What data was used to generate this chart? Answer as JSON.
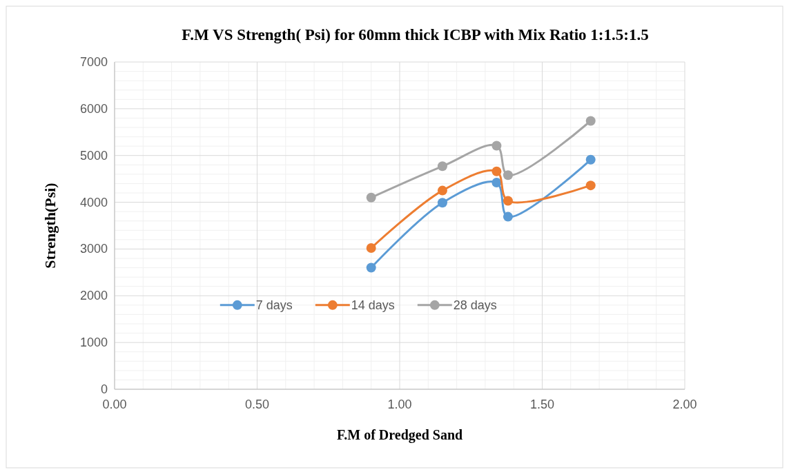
{
  "chart_data": {
    "type": "line",
    "title": "F.M VS Strength( Psi)  for 60mm thick ICBP with Mix Ratio 1:1.5:1.5",
    "xlabel": "F.M of Dredged Sand",
    "ylabel": "Strength(Psi)",
    "x": [
      0.9,
      1.15,
      1.34,
      1.38,
      1.67
    ],
    "series": [
      {
        "name": "7 days",
        "color": "#5b9bd5",
        "values": [
          2600,
          3990,
          4420,
          3690,
          4910
        ]
      },
      {
        "name": "14 days",
        "color": "#ed7d31",
        "values": [
          3020,
          4250,
          4660,
          4030,
          4360
        ]
      },
      {
        "name": "28 days",
        "color": "#a5a5a5",
        "values": [
          4100,
          4770,
          5210,
          4580,
          5740
        ]
      }
    ],
    "xlim": [
      0,
      2
    ],
    "xticks": [
      {
        "value": 0,
        "label": "0.00"
      },
      {
        "value": 0.5,
        "label": "0.50"
      },
      {
        "value": 1,
        "label": "1.00"
      },
      {
        "value": 1.5,
        "label": "1.50"
      },
      {
        "value": 2,
        "label": "2.00"
      }
    ],
    "ylim": [
      0,
      7000
    ],
    "yticks": [
      0,
      1000,
      2000,
      3000,
      4000,
      5000,
      6000,
      7000
    ],
    "grid": true,
    "legend": "bottom",
    "marker": "circle",
    "line_style": "solid"
  }
}
